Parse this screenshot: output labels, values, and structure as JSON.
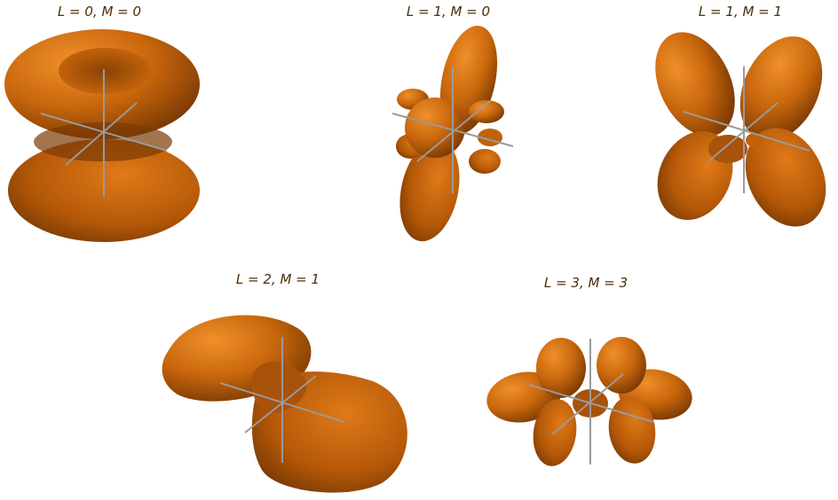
{
  "panels": [
    {
      "title": "L = 0,  M = 0"
    },
    {
      "title": "L = 1,  M = 0"
    },
    {
      "title": "L = 1,  M = 1"
    },
    {
      "title": "L = 2,  M = 1"
    },
    {
      "title": "L = 3,  M = 3"
    }
  ],
  "colors": {
    "surface_light": "#e8821a",
    "surface_mid": "#c0620a",
    "surface_dark": "#7a3a04",
    "axis": "#9a9a9a",
    "title": "#4a2e0c"
  }
}
